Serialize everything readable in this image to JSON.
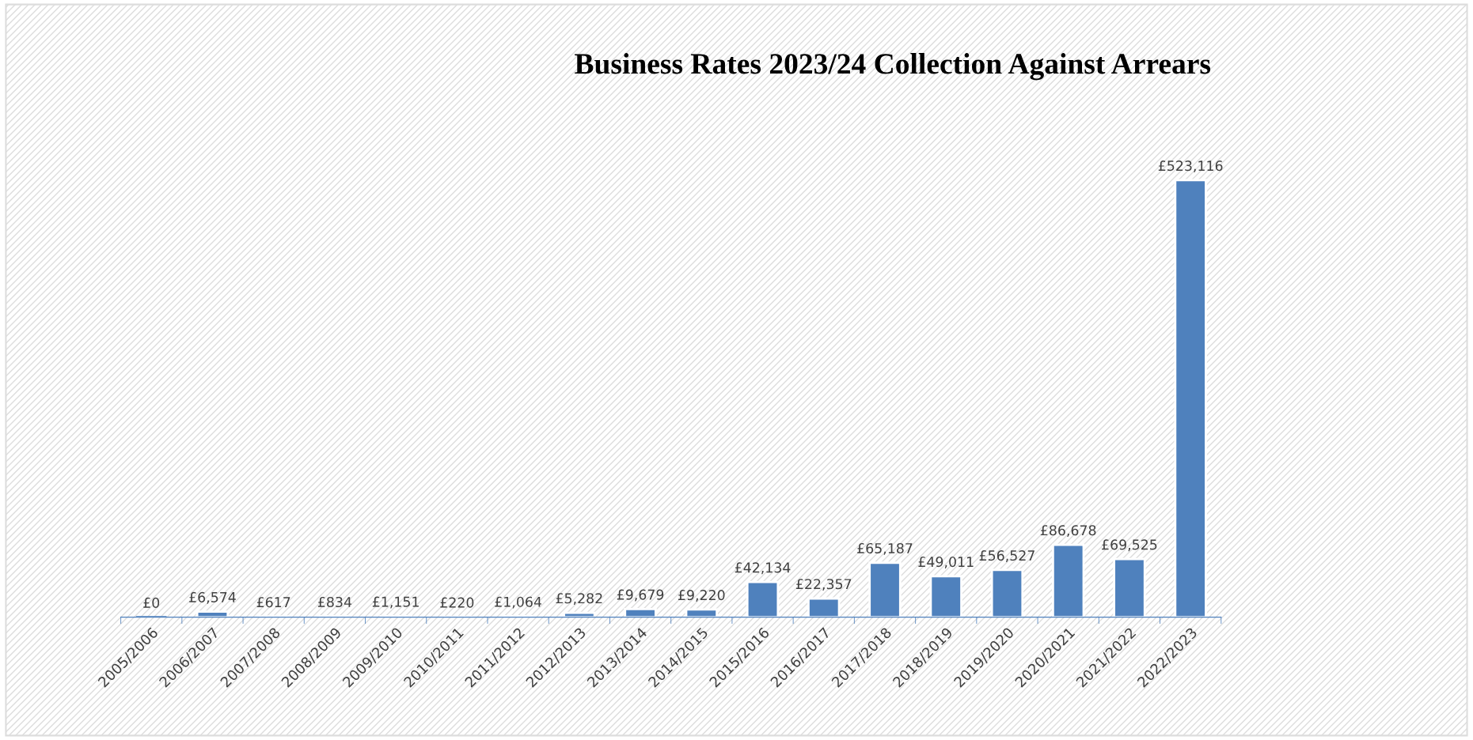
{
  "chart_data": {
    "type": "bar",
    "title": "Business Rates 2023/24 Collection Against Arrears",
    "categories": [
      "2005/2006",
      "2006/2007",
      "2007/2008",
      "2008/2009",
      "2009/2010",
      "2010/2011",
      "2011/2012",
      "2012/2013",
      "2013/2014",
      "2014/2015",
      "2015/2016",
      "2016/2017",
      "2017/2018",
      "2018/2019",
      "2019/2020",
      "2020/2021",
      "2021/2022",
      "2022/2023"
    ],
    "values": [
      0,
      6574,
      617,
      834,
      1151,
      220,
      1064,
      5282,
      9679,
      9220,
      42134,
      22357,
      65187,
      49011,
      56527,
      86678,
      69525,
      523116
    ],
    "value_labels": [
      "£0",
      "£6,574",
      "£617",
      "£834",
      "£1,151",
      "£220",
      "£1,064",
      "£5,282",
      "£9,679",
      "£9,220",
      "£42,134",
      "£22,357",
      "£65,187",
      "£49,011",
      "£56,527",
      "£86,678",
      "£69,525",
      "£523,116"
    ],
    "color": "#4f81bd",
    "grid": false,
    "legend": false,
    "tick_labels": "x"
  }
}
